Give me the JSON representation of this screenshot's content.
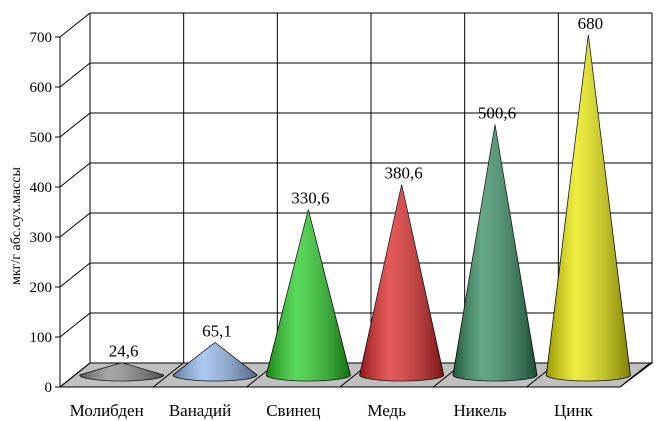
{
  "chart_data": {
    "type": "bar",
    "style": "3d-cone",
    "title": "",
    "xlabel": "",
    "ylabel": "мкг/г абс.сух.массы",
    "ylim": [
      0,
      700
    ],
    "yticks": [
      0,
      100,
      200,
      300,
      400,
      500,
      600,
      700
    ],
    "ytick_labels": [
      "0",
      "100",
      "200",
      "300",
      "400",
      "500",
      "600",
      "700"
    ],
    "grid": true,
    "legend": "none",
    "categories": [
      "Молибден",
      "Ванадий",
      "Свинец",
      "Медь",
      "Никель",
      "Цинк"
    ],
    "values": [
      24.6,
      65.1,
      330.6,
      380.6,
      500.6,
      680
    ],
    "value_labels": [
      "24,6",
      "65,1",
      "330,6",
      "380,6",
      "500,6",
      "680"
    ],
    "colors": [
      "#8a8a8a",
      "#8fb8ec",
      "#22cc22",
      "#dd2222",
      "#2f8a5c",
      "#e8e800"
    ],
    "floor_color": "#c0c0c0"
  }
}
